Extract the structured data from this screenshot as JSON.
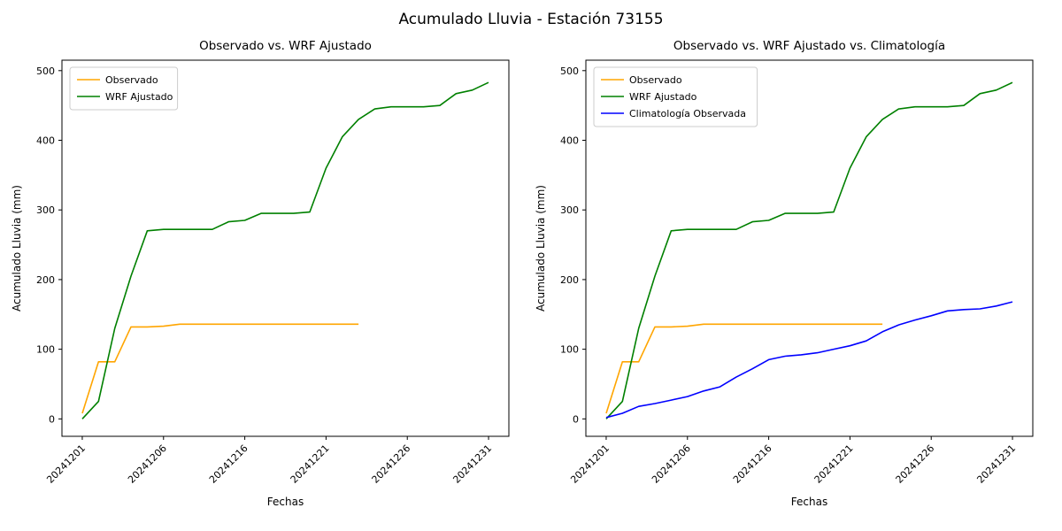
{
  "figure": {
    "title": "Acumulado Lluvia - Estación 73155"
  },
  "chart_data": [
    {
      "type": "line",
      "title": "Observado vs. WRF Ajustado",
      "xlabel": "Fechas",
      "ylabel": "Acumulado Lluvia (mm)",
      "ylim": [
        -25,
        515
      ],
      "yticks": [
        0,
        100,
        200,
        300,
        400,
        500
      ],
      "x_count": 26,
      "x_tick_indices": [
        0,
        5,
        10,
        15,
        20,
        25
      ],
      "x_tick_labels": [
        "20241201",
        "20241206",
        "20241216",
        "20241221",
        "20241226",
        "20241231"
      ],
      "legend_position": "upper left",
      "grid": false,
      "series": [
        {
          "name": "Observado",
          "color": "#FFA500",
          "values": [
            8,
            82,
            82,
            132,
            132,
            133,
            136,
            136,
            136,
            136,
            136,
            136,
            136,
            136,
            136,
            136,
            136,
            136
          ]
        },
        {
          "name": "WRF Ajustado",
          "color": "#008000",
          "values": [
            0,
            25,
            130,
            205,
            270,
            272,
            272,
            272,
            272,
            283,
            285,
            295,
            295,
            295,
            297,
            360,
            405,
            430,
            445,
            448,
            448,
            448,
            450,
            467,
            472,
            483
          ]
        }
      ]
    },
    {
      "type": "line",
      "title": "Observado vs. WRF Ajustado vs. Climatología",
      "xlabel": "Fechas",
      "ylabel": "Acumulado Lluvia (mm)",
      "ylim": [
        -25,
        515
      ],
      "yticks": [
        0,
        100,
        200,
        300,
        400,
        500
      ],
      "x_count": 26,
      "x_tick_indices": [
        0,
        5,
        10,
        15,
        20,
        25
      ],
      "x_tick_labels": [
        "20241201",
        "20241206",
        "20241216",
        "20241221",
        "20241226",
        "20241231"
      ],
      "legend_position": "upper left",
      "grid": false,
      "series": [
        {
          "name": "Observado",
          "color": "#FFA500",
          "values": [
            8,
            82,
            82,
            132,
            132,
            133,
            136,
            136,
            136,
            136,
            136,
            136,
            136,
            136,
            136,
            136,
            136,
            136
          ]
        },
        {
          "name": "WRF Ajustado",
          "color": "#008000",
          "values": [
            0,
            25,
            130,
            205,
            270,
            272,
            272,
            272,
            272,
            283,
            285,
            295,
            295,
            295,
            297,
            360,
            405,
            430,
            445,
            448,
            448,
            448,
            450,
            467,
            472,
            483
          ]
        },
        {
          "name": "Climatología Observada",
          "color": "#0000FF",
          "values": [
            2,
            8,
            18,
            22,
            27,
            32,
            40,
            46,
            60,
            72,
            85,
            90,
            92,
            95,
            100,
            105,
            112,
            125,
            135,
            142,
            148,
            155,
            157,
            158,
            162,
            168
          ]
        }
      ]
    }
  ]
}
